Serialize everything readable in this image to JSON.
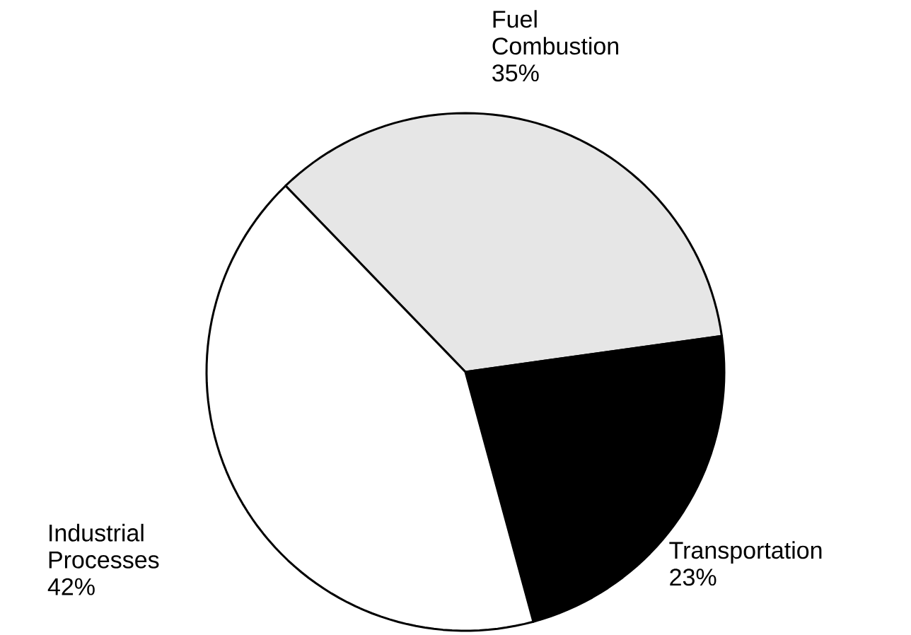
{
  "chart_data": {
    "type": "pie",
    "categories": [
      "Fuel Combustion",
      "Transportation",
      "Industrial Processes"
    ],
    "values": [
      35,
      23,
      42
    ],
    "colors": [
      "#e6e6e6",
      "#000000",
      "#ffffff"
    ],
    "value_labels": [
      "35%",
      "23%",
      "42%"
    ]
  }
}
